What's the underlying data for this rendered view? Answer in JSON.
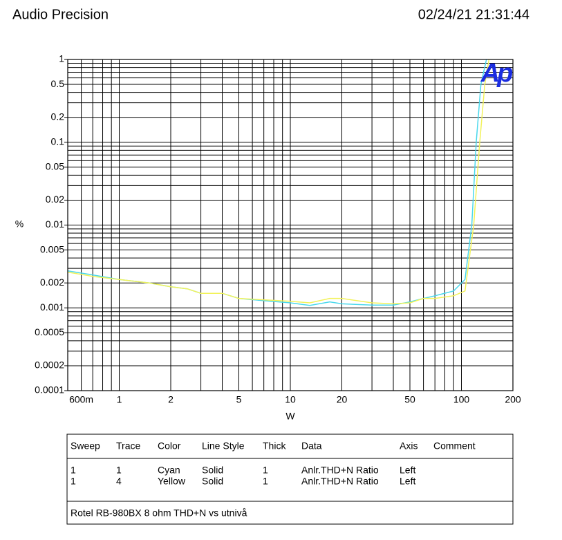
{
  "header": {
    "left": "Audio Precision",
    "right": "02/24/21 21:31:44"
  },
  "chart_data": {
    "type": "line",
    "logo": "Ap",
    "xlabel": "W",
    "ylabel": "%",
    "xscale": "log",
    "yscale": "log",
    "grid": true,
    "xlim": [
      0.5,
      200
    ],
    "ylim": [
      0.0001,
      1
    ],
    "xticks": [
      {
        "value": 0.6,
        "label": "600m"
      },
      1,
      2,
      5,
      10,
      20,
      50,
      100,
      200
    ],
    "x_minor_ticks": [
      0.7,
      0.8,
      0.9,
      3,
      4,
      6,
      7,
      8,
      9,
      30,
      40,
      60,
      70,
      80,
      90
    ],
    "yticks": [
      1,
      0.5,
      0.2,
      0.1,
      0.05,
      0.02,
      0.01,
      0.005,
      0.002,
      0.001,
      0.0005,
      0.0002,
      0.0001
    ],
    "y_minor_ticks": [
      0.9,
      0.8,
      0.7,
      0.6,
      0.4,
      0.3,
      0.09,
      0.08,
      0.07,
      0.06,
      0.04,
      0.03,
      0.009,
      0.008,
      0.007,
      0.006,
      0.004,
      0.003,
      0.0009,
      0.0008,
      0.0007,
      0.0006,
      0.0004,
      0.0003
    ],
    "series": [
      {
        "name": "Cyan",
        "color": "#4ad8ec",
        "x": [
          0.5,
          0.7,
          1,
          1.5,
          2,
          2.5,
          3,
          4,
          5,
          7,
          10,
          13,
          17,
          20,
          30,
          40,
          50,
          60,
          70,
          90,
          105,
          115,
          122,
          130,
          140
        ],
        "values": [
          0.0028,
          0.0025,
          0.0022,
          0.002,
          0.0018,
          0.0017,
          0.0015,
          0.0015,
          0.0013,
          0.00122,
          0.00115,
          0.00107,
          0.00118,
          0.00112,
          0.00108,
          0.00108,
          0.00118,
          0.0013,
          0.0014,
          0.0016,
          0.0022,
          0.01,
          0.1,
          0.5,
          1
        ]
      },
      {
        "name": "Yellow",
        "color": "#f2f25a",
        "x": [
          0.5,
          0.7,
          1,
          1.5,
          2,
          2.5,
          3,
          4,
          5,
          7,
          10,
          13,
          17,
          20,
          30,
          40,
          50,
          60,
          70,
          90,
          105,
          118,
          128,
          137,
          145
        ],
        "values": [
          0.0027,
          0.0024,
          0.0022,
          0.002,
          0.0018,
          0.0017,
          0.0015,
          0.0015,
          0.0013,
          0.00125,
          0.0012,
          0.00115,
          0.0013,
          0.0013,
          0.00115,
          0.00112,
          0.00115,
          0.0013,
          0.0013,
          0.0014,
          0.0016,
          0.01,
          0.1,
          0.5,
          1
        ]
      }
    ]
  },
  "legend_table": {
    "columns": [
      "Sweep",
      "Trace",
      "Color",
      "Line Style",
      "Thick",
      "Data",
      "Axis",
      "Comment"
    ],
    "rows": [
      [
        "1",
        "1",
        "Cyan",
        "Solid",
        "1",
        "Anlr.THD+N Ratio",
        "Left"
      ],
      [
        "1",
        "4",
        "Yellow",
        "Solid",
        "1",
        "Anlr.THD+N Ratio",
        "Left"
      ]
    ],
    "comment": "Rotel RB-980BX 8 ohm THD+N vs utnivå"
  }
}
